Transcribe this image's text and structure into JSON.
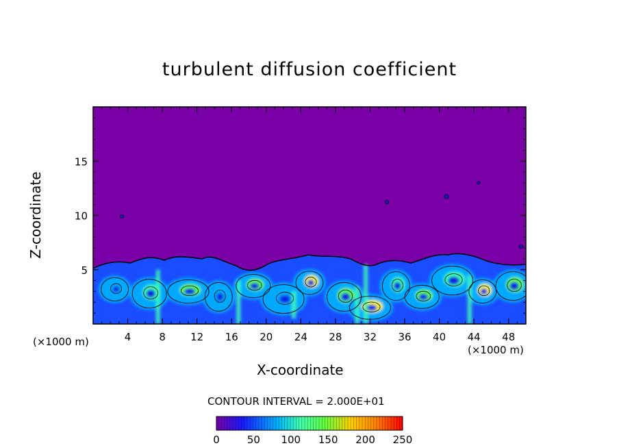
{
  "chart_data": {
    "type": "heatmap",
    "title": "turbulent diffusion coefficient",
    "xlabel": "X-coordinate",
    "ylabel": "Z-coordinate",
    "x_unit": "(×1000 m)",
    "xlim": [
      0,
      50
    ],
    "ylim": [
      0,
      20
    ],
    "x_ticks": [
      4,
      8,
      12,
      16,
      20,
      24,
      28,
      32,
      36,
      40,
      44,
      48
    ],
    "y_ticks": [
      5,
      10,
      15
    ],
    "contour_interval_text": "CONTOUR INTERVAL = 2.000E+01",
    "colorbar": {
      "min": 0,
      "max": 250,
      "ticks": [
        0,
        50,
        100,
        150,
        200,
        250
      ],
      "colors": [
        "#7a00a8",
        "#1a1aff",
        "#00b4ff",
        "#40ffb0",
        "#60ff40",
        "#ffff00",
        "#ff8000",
        "#ff0000"
      ]
    },
    "background_value": 0,
    "turbulent_layer_top": 6,
    "eddies": [
      {
        "x": 2.5,
        "z": 3.2,
        "value": 40
      },
      {
        "x": 6.5,
        "z": 2.8,
        "value": 70
      },
      {
        "x": 11,
        "z": 3.0,
        "value": 90
      },
      {
        "x": 14.5,
        "z": 2.5,
        "value": 50
      },
      {
        "x": 18.5,
        "z": 3.5,
        "value": 100
      },
      {
        "x": 22,
        "z": 2.3,
        "value": 40
      },
      {
        "x": 25,
        "z": 3.8,
        "value": 110
      },
      {
        "x": 29,
        "z": 2.5,
        "value": 80
      },
      {
        "x": 32,
        "z": 1.5,
        "value": 120
      },
      {
        "x": 35,
        "z": 3.5,
        "value": 70
      },
      {
        "x": 38,
        "z": 2.5,
        "value": 90
      },
      {
        "x": 41.5,
        "z": 4.0,
        "value": 60
      },
      {
        "x": 45,
        "z": 3.0,
        "value": 110
      },
      {
        "x": 48.5,
        "z": 3.5,
        "value": 80
      }
    ]
  }
}
